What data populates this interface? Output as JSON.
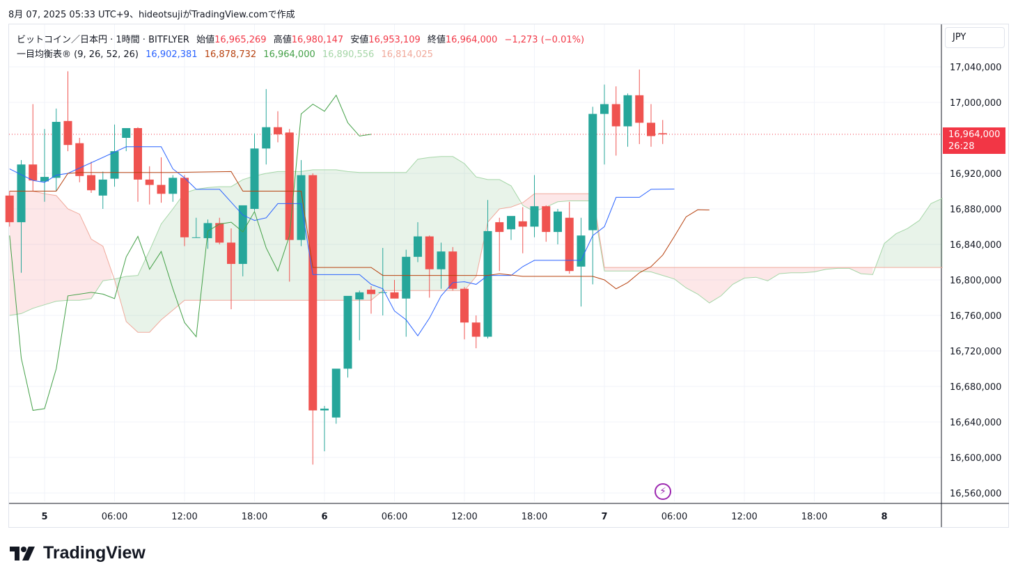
{
  "header": {
    "caption": "8月 07, 2025 05:33 UTC+9、hideotsujiがTradingView.comで作成"
  },
  "legend": {
    "symbol": "ビットコイン／日本円 · 1時間 · BITFLYER",
    "open_label": "始値",
    "open_value": "16,965,269",
    "high_label": "高値",
    "high_value": "16,980,147",
    "low_label": "安値",
    "low_value": "16,953,109",
    "close_label": "終値",
    "close_value": "16,964,000",
    "change": "−1,273 (−0.01%)",
    "indicator_name": "一目均衡表®",
    "indicator_params": "(9, 26, 52, 26)",
    "tenkan": "16,902,381",
    "kijun": "16,878,732",
    "chikou": "16,964,000",
    "span_a": "16,890,556",
    "span_b": "16,814,025"
  },
  "currency": "JPY",
  "price_tag": {
    "price": "16,964,000",
    "countdown": "26:28"
  },
  "brand": "TradingView",
  "colors": {
    "up": "#26a69a",
    "down": "#ef5350",
    "tenkan": "#2962ff",
    "kijun": "#b7410e",
    "chikou": "#43a047",
    "span_a": "#a5d6a7",
    "span_b": "#f0a99b",
    "accent": "#9c27b0"
  },
  "chart_data": {
    "type": "candlestick",
    "title": "ビットコイン／日本円 · 1時間 · BITFLYER",
    "y_ticks": [
      17040000,
      17000000,
      16920000,
      16880000,
      16840000,
      16800000,
      16760000,
      16720000,
      16680000,
      16640000,
      16600000,
      16560000
    ],
    "y_tick_labels": [
      "17,040,000",
      "17,000,000",
      "16,920,000",
      "16,880,000",
      "16,840,000",
      "16,800,000",
      "16,760,000",
      "16,720,000",
      "16,680,000",
      "16,640,000",
      "16,600,000",
      "16,560,000"
    ],
    "ylim": [
      16550000,
      17085000
    ],
    "x_ticks": [
      {
        "label": "5",
        "hour": 0,
        "day": true
      },
      {
        "label": "06:00",
        "hour": 6
      },
      {
        "label": "12:00",
        "hour": 12
      },
      {
        "label": "18:00",
        "hour": 18
      },
      {
        "label": "6",
        "hour": 24,
        "day": true
      },
      {
        "label": "06:00",
        "hour": 30
      },
      {
        "label": "12:00",
        "hour": 36
      },
      {
        "label": "18:00",
        "hour": 42
      },
      {
        "label": "7",
        "hour": 48,
        "day": true
      },
      {
        "label": "06:00",
        "hour": 54
      },
      {
        "label": "12:00",
        "hour": 60
      },
      {
        "label": "18:00",
        "hour": 66
      },
      {
        "label": "8",
        "hour": 72,
        "day": true
      }
    ],
    "xlim": [
      -3,
      77
    ],
    "current_price": 16964000,
    "candles": [
      {
        "t": -3,
        "o": 16895000,
        "h": 16900000,
        "l": 16860000,
        "c": 16865000
      },
      {
        "t": -2,
        "o": 16865000,
        "h": 16935000,
        "l": 16808000,
        "c": 16930000
      },
      {
        "t": -1,
        "o": 16930000,
        "h": 16998000,
        "l": 16900000,
        "c": 16912000
      },
      {
        "t": 0,
        "o": 16911000,
        "h": 16970000,
        "l": 16888000,
        "c": 16916000
      },
      {
        "t": 1,
        "o": 16915000,
        "h": 16993000,
        "l": 16900000,
        "c": 16978000
      },
      {
        "t": 2,
        "o": 16979000,
        "h": 17035000,
        "l": 16945000,
        "c": 16952000
      },
      {
        "t": 3,
        "o": 16954000,
        "h": 16960000,
        "l": 16910000,
        "c": 16917000
      },
      {
        "t": 4,
        "o": 16918000,
        "h": 16933000,
        "l": 16898000,
        "c": 16901000
      },
      {
        "t": 5,
        "o": 16895000,
        "h": 16922000,
        "l": 16880000,
        "c": 16913000
      },
      {
        "t": 6,
        "o": 16914000,
        "h": 16975000,
        "l": 16905000,
        "c": 16945000
      },
      {
        "t": 7,
        "o": 16960000,
        "h": 16970000,
        "l": 16945000,
        "c": 16971000
      },
      {
        "t": 8,
        "o": 16971000,
        "h": 16972000,
        "l": 16888000,
        "c": 16913000
      },
      {
        "t": 9,
        "o": 16913000,
        "h": 16928000,
        "l": 16885000,
        "c": 16907000
      },
      {
        "t": 10,
        "o": 16907000,
        "h": 16938000,
        "l": 16887000,
        "c": 16897000
      },
      {
        "t": 11,
        "o": 16897000,
        "h": 16918000,
        "l": 16888000,
        "c": 16915000
      },
      {
        "t": 12,
        "o": 16915000,
        "h": 16918000,
        "l": 16838000,
        "c": 16848000
      },
      {
        "t": 13,
        "o": 16848000,
        "h": 16870000,
        "l": 16848000,
        "c": 16848000
      },
      {
        "t": 14,
        "o": 16847000,
        "h": 16868000,
        "l": 16835000,
        "c": 16864000
      },
      {
        "t": 15,
        "o": 16864000,
        "h": 16870000,
        "l": 16840000,
        "c": 16842000
      },
      {
        "t": 16,
        "o": 16842000,
        "h": 16858000,
        "l": 16767000,
        "c": 16818000
      },
      {
        "t": 17,
        "o": 16818000,
        "h": 16880000,
        "l": 16804000,
        "c": 16884000
      },
      {
        "t": 18,
        "o": 16880000,
        "h": 16965000,
        "l": 16878000,
        "c": 16948000
      },
      {
        "t": 19,
        "o": 16948000,
        "h": 17015000,
        "l": 16930000,
        "c": 16972000
      },
      {
        "t": 20,
        "o": 16972000,
        "h": 16990000,
        "l": 16955000,
        "c": 16964000
      },
      {
        "t": 21,
        "o": 16966000,
        "h": 16970000,
        "l": 16798000,
        "c": 16845000
      },
      {
        "t": 22,
        "o": 16845000,
        "h": 16935000,
        "l": 16838000,
        "c": 16918000
      },
      {
        "t": 23,
        "o": 16918000,
        "h": 16920000,
        "l": 16592000,
        "c": 16653000
      },
      {
        "t": 24,
        "o": 16653000,
        "h": 16658000,
        "l": 16607000,
        "c": 16655000
      },
      {
        "t": 25,
        "o": 16645000,
        "h": 16700000,
        "l": 16638000,
        "c": 16700000
      },
      {
        "t": 26,
        "o": 16700000,
        "h": 16782000,
        "l": 16690000,
        "c": 16782000
      },
      {
        "t": 27,
        "o": 16778000,
        "h": 16788000,
        "l": 16732000,
        "c": 16786000
      },
      {
        "t": 28,
        "o": 16789000,
        "h": 16793000,
        "l": 16762000,
        "c": 16784000
      },
      {
        "t": 29,
        "o": 16786000,
        "h": 16836000,
        "l": 16760000,
        "c": 16786000
      },
      {
        "t": 30,
        "o": 16786000,
        "h": 16800000,
        "l": 16780000,
        "c": 16779000
      },
      {
        "t": 31,
        "o": 16779000,
        "h": 16834000,
        "l": 16736000,
        "c": 16826000
      },
      {
        "t": 32,
        "o": 16826000,
        "h": 16865000,
        "l": 16820000,
        "c": 16849000
      },
      {
        "t": 33,
        "o": 16849000,
        "h": 16850000,
        "l": 16780000,
        "c": 16812000
      },
      {
        "t": 34,
        "o": 16812000,
        "h": 16842000,
        "l": 16790000,
        "c": 16832000
      },
      {
        "t": 35,
        "o": 16832000,
        "h": 16837000,
        "l": 16788000,
        "c": 16790000
      },
      {
        "t": 36,
        "o": 16790000,
        "h": 16792000,
        "l": 16733000,
        "c": 16752000
      },
      {
        "t": 37,
        "o": 16752000,
        "h": 16760000,
        "l": 16723000,
        "c": 16736000
      },
      {
        "t": 38,
        "o": 16736000,
        "h": 16890000,
        "l": 16734000,
        "c": 16855000
      },
      {
        "t": 39,
        "o": 16865000,
        "h": 16870000,
        "l": 16810000,
        "c": 16854000
      },
      {
        "t": 40,
        "o": 16857000,
        "h": 16868000,
        "l": 16845000,
        "c": 16872000
      },
      {
        "t": 41,
        "o": 16866000,
        "h": 16882000,
        "l": 16830000,
        "c": 16860000
      },
      {
        "t": 42,
        "o": 16860000,
        "h": 16918000,
        "l": 16848000,
        "c": 16883000
      },
      {
        "t": 43,
        "o": 16883000,
        "h": 16884000,
        "l": 16843000,
        "c": 16854000
      },
      {
        "t": 44,
        "o": 16854000,
        "h": 16880000,
        "l": 16840000,
        "c": 16877000
      },
      {
        "t": 45,
        "o": 16870000,
        "h": 16888000,
        "l": 16807000,
        "c": 16810000
      },
      {
        "t": 46,
        "o": 16815000,
        "h": 16870000,
        "l": 16770000,
        "c": 16850000
      },
      {
        "t": 47,
        "o": 16856000,
        "h": 16995000,
        "l": 16795000,
        "c": 16987000
      },
      {
        "t": 48,
        "o": 16987000,
        "h": 17020000,
        "l": 16930000,
        "c": 16998000
      },
      {
        "t": 49,
        "o": 16998000,
        "h": 17018000,
        "l": 16940000,
        "c": 16973000
      },
      {
        "t": 50,
        "o": 16973000,
        "h": 17010000,
        "l": 16950000,
        "c": 17008000
      },
      {
        "t": 51,
        "o": 17008000,
        "h": 17037000,
        "l": 16953000,
        "c": 16977000
      },
      {
        "t": 52,
        "o": 16977000,
        "h": 16998000,
        "l": 16950000,
        "c": 16962000
      },
      {
        "t": 53,
        "o": 16965269,
        "h": 16980147,
        "l": 16953109,
        "c": 16964000
      }
    ],
    "tenkan": [
      [
        -3,
        16925000
      ],
      [
        -1,
        16912000
      ],
      [
        0,
        16910000
      ],
      [
        1,
        16918000
      ],
      [
        2,
        16920000
      ],
      [
        7,
        16950000
      ],
      [
        10,
        16950000
      ],
      [
        11,
        16925000
      ],
      [
        12,
        16915000
      ],
      [
        13,
        16902000
      ],
      [
        15,
        16902000
      ],
      [
        17,
        16873000
      ],
      [
        18,
        16867000
      ],
      [
        19,
        16870000
      ],
      [
        20,
        16886000
      ],
      [
        22,
        16886000
      ],
      [
        23,
        16806000
      ],
      [
        27,
        16806000
      ],
      [
        28,
        16795000
      ],
      [
        29,
        16790000
      ],
      [
        30,
        16765000
      ],
      [
        31,
        16755000
      ],
      [
        32,
        16737000
      ],
      [
        33,
        16757000
      ],
      [
        34,
        16782000
      ],
      [
        35,
        16797000
      ],
      [
        36,
        16798000
      ],
      [
        37,
        16795000
      ],
      [
        38,
        16805000
      ],
      [
        40,
        16805000
      ],
      [
        41,
        16815000
      ],
      [
        42,
        16822000
      ],
      [
        46,
        16822000
      ],
      [
        47,
        16850000
      ],
      [
        48,
        16860000
      ],
      [
        49,
        16893000
      ],
      [
        51,
        16893000
      ],
      [
        52,
        16902000
      ],
      [
        54,
        16902381
      ]
    ],
    "kijun": [
      [
        -3,
        16900000
      ],
      [
        1,
        16900000
      ],
      [
        2,
        16920000
      ],
      [
        3,
        16921000
      ],
      [
        11,
        16921000
      ],
      [
        16,
        16922000
      ],
      [
        17,
        16900000
      ],
      [
        21,
        16900000
      ],
      [
        22,
        16900000
      ],
      [
        23,
        16814000
      ],
      [
        28,
        16814000
      ],
      [
        29,
        16805000
      ],
      [
        38,
        16805000
      ],
      [
        39,
        16807000
      ],
      [
        41,
        16804000
      ],
      [
        47,
        16804000
      ],
      [
        48,
        16800000
      ],
      [
        49,
        16790000
      ],
      [
        50,
        16797000
      ],
      [
        51,
        16808000
      ],
      [
        52,
        16815000
      ],
      [
        53,
        16828000
      ],
      [
        54,
        16849000
      ],
      [
        55,
        16871000
      ],
      [
        56,
        16879000
      ],
      [
        57,
        16878732
      ]
    ],
    "chikou": [
      [
        -3,
        16850000
      ],
      [
        -2,
        16712000
      ],
      [
        -1,
        16653000
      ],
      [
        0,
        16655000
      ],
      [
        1,
        16700000
      ],
      [
        2,
        16782000
      ],
      [
        4,
        16786000
      ],
      [
        5,
        16784000
      ],
      [
        6,
        16779000
      ],
      [
        7,
        16826000
      ],
      [
        8,
        16849000
      ],
      [
        9,
        16812000
      ],
      [
        10,
        16832000
      ],
      [
        11,
        16790000
      ],
      [
        12,
        16752000
      ],
      [
        13,
        16736000
      ],
      [
        14,
        16855000
      ],
      [
        15,
        16863000
      ],
      [
        16,
        16865000
      ],
      [
        17,
        16854000
      ],
      [
        18,
        16877000
      ],
      [
        19,
        16836000
      ],
      [
        20,
        16810000
      ],
      [
        21,
        16850000
      ],
      [
        22,
        16987000
      ],
      [
        23,
        16998000
      ],
      [
        24,
        16990000
      ],
      [
        25,
        17008000
      ],
      [
        26,
        16977000
      ],
      [
        27,
        16962000
      ],
      [
        28,
        16964000
      ]
    ],
    "span_a": [
      [
        -3,
        16760000
      ],
      [
        -2,
        16762000
      ],
      [
        -1,
        16768000
      ],
      [
        0,
        16772000
      ],
      [
        1,
        16776000
      ],
      [
        2,
        16777000
      ],
      [
        3,
        16777000
      ],
      [
        4,
        16779000
      ],
      [
        5,
        16799000
      ],
      [
        6,
        16801000
      ],
      [
        7,
        16804000
      ],
      [
        8,
        16805000
      ],
      [
        9,
        16833000
      ],
      [
        10,
        16863000
      ],
      [
        11,
        16880000
      ],
      [
        12,
        16898000
      ],
      [
        13,
        16902000
      ],
      [
        14,
        16904000
      ],
      [
        15,
        16905000
      ],
      [
        16,
        16905000
      ],
      [
        17,
        16913000
      ],
      [
        18,
        16917000
      ],
      [
        19,
        16920000
      ],
      [
        20,
        16922000
      ],
      [
        21,
        16922000
      ],
      [
        22,
        16922000
      ],
      [
        23,
        16924000
      ],
      [
        24,
        16924000
      ],
      [
        25,
        16924000
      ],
      [
        26,
        16922000
      ],
      [
        27,
        16921000
      ],
      [
        28,
        16921000
      ],
      [
        29,
        16921000
      ],
      [
        30,
        16921000
      ],
      [
        31,
        16921000
      ],
      [
        32,
        16936000
      ],
      [
        33,
        16938000
      ],
      [
        34,
        16939000
      ],
      [
        35,
        16939000
      ],
      [
        36,
        16931000
      ],
      [
        37,
        16916000
      ],
      [
        38,
        16913000
      ],
      [
        39,
        16913000
      ],
      [
        40,
        16906000
      ],
      [
        41,
        16884000
      ],
      [
        42,
        16877000
      ],
      [
        43,
        16882000
      ],
      [
        44,
        16888000
      ],
      [
        45,
        16889000
      ],
      [
        46,
        16889000
      ],
      [
        47,
        16889000
      ],
      [
        48,
        16810000
      ],
      [
        49,
        16810000
      ],
      [
        50,
        16810000
      ],
      [
        51,
        16810000
      ],
      [
        52,
        16809000
      ],
      [
        53,
        16805000
      ],
      [
        54,
        16801000
      ],
      [
        55,
        16791000
      ],
      [
        56,
        16784000
      ],
      [
        57,
        16774000
      ],
      [
        58,
        16782000
      ],
      [
        59,
        16795000
      ],
      [
        60,
        16802000
      ],
      [
        61,
        16803000
      ],
      [
        62,
        16799000
      ],
      [
        63,
        16807000
      ],
      [
        64,
        16808000
      ],
      [
        65,
        16808000
      ],
      [
        66,
        16809000
      ],
      [
        67,
        16812000
      ],
      [
        68,
        16813000
      ],
      [
        69,
        16813000
      ],
      [
        70,
        16807000
      ],
      [
        71,
        16806000
      ],
      [
        72,
        16841000
      ],
      [
        73,
        16852000
      ],
      [
        74,
        16858000
      ],
      [
        75,
        16867000
      ],
      [
        76,
        16886000
      ],
      [
        77,
        16892000
      ]
    ],
    "span_b": [
      [
        -3,
        16900000
      ],
      [
        -2,
        16900000
      ],
      [
        -1,
        16900000
      ],
      [
        0,
        16897000
      ],
      [
        1,
        16895000
      ],
      [
        2,
        16880000
      ],
      [
        3,
        16874000
      ],
      [
        4,
        16846000
      ],
      [
        5,
        16838000
      ],
      [
        6,
        16800000
      ],
      [
        7,
        16753000
      ],
      [
        8,
        16741000
      ],
      [
        9,
        16741000
      ],
      [
        10,
        16755000
      ],
      [
        11,
        16766000
      ],
      [
        12,
        16777000
      ],
      [
        13,
        16777000
      ],
      [
        17,
        16777000
      ],
      [
        22,
        16777000
      ],
      [
        23,
        16777000
      ],
      [
        28,
        16777000
      ],
      [
        29,
        16788000
      ],
      [
        36,
        16788000
      ],
      [
        37,
        16804000
      ],
      [
        38,
        16865000
      ],
      [
        39,
        16880000
      ],
      [
        40,
        16882000
      ],
      [
        41,
        16887000
      ],
      [
        42,
        16897000
      ],
      [
        47,
        16897000
      ],
      [
        48,
        16814000
      ],
      [
        77,
        16814000
      ]
    ]
  }
}
